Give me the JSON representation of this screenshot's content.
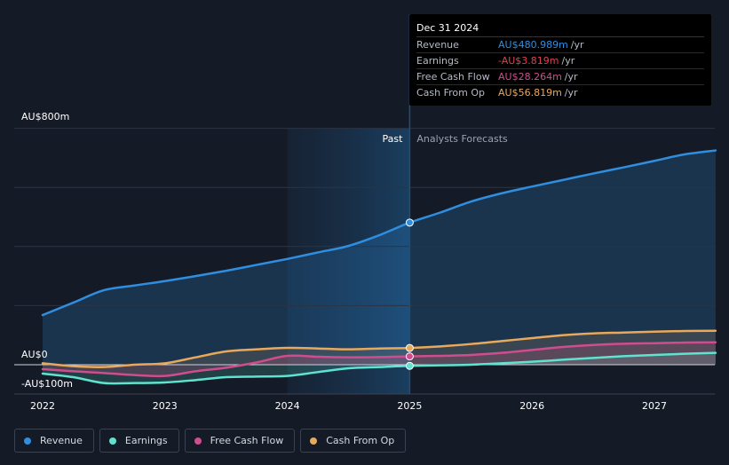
{
  "chart_data": {
    "type": "line",
    "title": "",
    "x_axis": {
      "ticks": [
        "2022",
        "2023",
        "2024",
        "2025",
        "2026",
        "2027"
      ],
      "tick_values": [
        2022,
        2023,
        2024,
        2025,
        2026,
        2027
      ],
      "range": [
        2021.75,
        2027.5
      ]
    },
    "y_axis": {
      "tick_labels": [
        "AU$800m",
        "AU$0",
        "-AU$100m"
      ],
      "tick_values": [
        800,
        0,
        -100
      ],
      "range": [
        -100,
        800
      ]
    },
    "divider_x": 2025.0,
    "past_region_start": 2024.0,
    "past_label": "Past",
    "forecast_label": "Analysts Forecasts",
    "series": [
      {
        "name": "Revenue",
        "color": "#2f8ee0",
        "points": [
          [
            2022.0,
            168
          ],
          [
            2022.25,
            210
          ],
          [
            2022.5,
            252
          ],
          [
            2022.75,
            268
          ],
          [
            2023.0,
            283
          ],
          [
            2023.25,
            300
          ],
          [
            2023.5,
            318
          ],
          [
            2023.75,
            338
          ],
          [
            2024.0,
            358
          ],
          [
            2024.25,
            380
          ],
          [
            2024.5,
            402
          ],
          [
            2024.75,
            438
          ],
          [
            2025.0,
            481
          ],
          [
            2025.25,
            515
          ],
          [
            2025.5,
            552
          ],
          [
            2025.75,
            580
          ],
          [
            2026.0,
            603
          ],
          [
            2026.25,
            625
          ],
          [
            2026.5,
            647
          ],
          [
            2026.75,
            668
          ],
          [
            2027.0,
            690
          ],
          [
            2027.25,
            712
          ],
          [
            2027.5,
            725
          ]
        ]
      },
      {
        "name": "Earnings",
        "color": "#5ee3d0",
        "points": [
          [
            2022.0,
            -30
          ],
          [
            2022.25,
            -42
          ],
          [
            2022.5,
            -62
          ],
          [
            2022.75,
            -62
          ],
          [
            2023.0,
            -60
          ],
          [
            2023.25,
            -52
          ],
          [
            2023.5,
            -42
          ],
          [
            2023.75,
            -40
          ],
          [
            2024.0,
            -38
          ],
          [
            2024.25,
            -25
          ],
          [
            2024.5,
            -12
          ],
          [
            2024.75,
            -8
          ],
          [
            2025.0,
            -3.8
          ],
          [
            2025.25,
            -2
          ],
          [
            2025.5,
            0
          ],
          [
            2025.75,
            5
          ],
          [
            2026.0,
            10
          ],
          [
            2026.25,
            17
          ],
          [
            2026.5,
            23
          ],
          [
            2026.75,
            29
          ],
          [
            2027.0,
            33
          ],
          [
            2027.25,
            37
          ],
          [
            2027.5,
            40
          ]
        ]
      },
      {
        "name": "Free Cash Flow",
        "color": "#cf4d8f",
        "points": [
          [
            2022.0,
            -15
          ],
          [
            2022.25,
            -22
          ],
          [
            2022.5,
            -28
          ],
          [
            2022.75,
            -35
          ],
          [
            2023.0,
            -38
          ],
          [
            2023.25,
            -22
          ],
          [
            2023.5,
            -10
          ],
          [
            2023.75,
            8
          ],
          [
            2024.0,
            30
          ],
          [
            2024.25,
            27
          ],
          [
            2024.5,
            25
          ],
          [
            2024.75,
            26
          ],
          [
            2025.0,
            28.3
          ],
          [
            2025.25,
            30
          ],
          [
            2025.5,
            33
          ],
          [
            2025.75,
            40
          ],
          [
            2026.0,
            50
          ],
          [
            2026.25,
            60
          ],
          [
            2026.5,
            67
          ],
          [
            2026.75,
            71
          ],
          [
            2027.0,
            73
          ],
          [
            2027.25,
            75
          ],
          [
            2027.5,
            76
          ]
        ]
      },
      {
        "name": "Cash From Op",
        "color": "#e8a95c",
        "points": [
          [
            2022.0,
            5
          ],
          [
            2022.25,
            -5
          ],
          [
            2022.5,
            -8
          ],
          [
            2022.75,
            0
          ],
          [
            2023.0,
            5
          ],
          [
            2023.25,
            25
          ],
          [
            2023.5,
            45
          ],
          [
            2023.75,
            52
          ],
          [
            2024.0,
            57
          ],
          [
            2024.25,
            55
          ],
          [
            2024.5,
            52
          ],
          [
            2024.75,
            55
          ],
          [
            2025.0,
            56.8
          ],
          [
            2025.25,
            62
          ],
          [
            2025.5,
            70
          ],
          [
            2025.75,
            80
          ],
          [
            2026.0,
            90
          ],
          [
            2026.25,
            100
          ],
          [
            2026.5,
            106
          ],
          [
            2026.75,
            109
          ],
          [
            2027.0,
            112
          ],
          [
            2027.25,
            114
          ],
          [
            2027.5,
            115
          ]
        ]
      }
    ],
    "highlight_x": 2025.0
  },
  "tooltip": {
    "date": "Dec 31 2024",
    "rows": [
      {
        "label": "Revenue",
        "value": "AU$480.989m",
        "unit": "/yr",
        "color": "#2f8ee0"
      },
      {
        "label": "Earnings",
        "value": "-AU$3.819m",
        "unit": "/yr",
        "color": "#e0414f"
      },
      {
        "label": "Free Cash Flow",
        "value": "AU$28.264m",
        "unit": "/yr",
        "color": "#cf4d8f"
      },
      {
        "label": "Cash From Op",
        "value": "AU$56.819m",
        "unit": "/yr",
        "color": "#e8a95c"
      }
    ]
  },
  "legend": [
    {
      "label": "Revenue",
      "color": "#2f8ee0"
    },
    {
      "label": "Earnings",
      "color": "#5ee3d0"
    },
    {
      "label": "Free Cash Flow",
      "color": "#cf4d8f"
    },
    {
      "label": "Cash From Op",
      "color": "#e8a95c"
    }
  ]
}
